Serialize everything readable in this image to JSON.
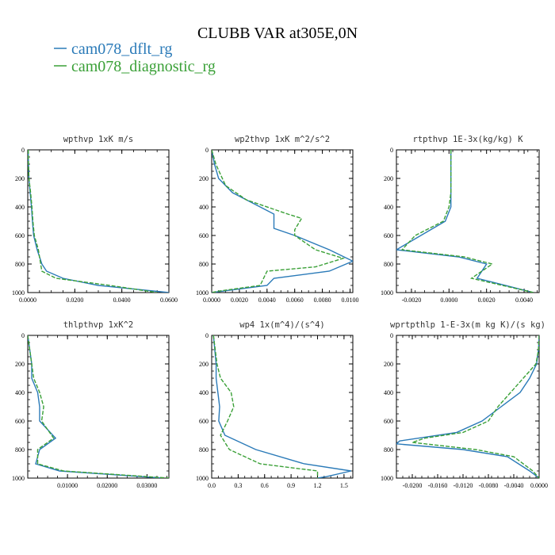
{
  "figure": {
    "title": "CLUBB VAR at305E,0N",
    "legend": [
      {
        "label": "cam078_dflt_rg",
        "color": "#2a7ab8"
      },
      {
        "label": "cam078_diagnostic_rg",
        "color": "#3aa037"
      }
    ]
  },
  "chart_data": [
    {
      "type": "line",
      "title": "wpthvp  1xK m/s",
      "xlim": [
        0,
        0.06
      ],
      "ylim": [
        1000,
        0
      ],
      "xticks": [
        "0.0000",
        "0.0200",
        "0.0400",
        "0.0600"
      ],
      "yticks": [
        "0",
        "200",
        "400",
        "600",
        "800",
        "1000"
      ],
      "series": [
        {
          "name": "cam078_dflt_rg",
          "points": [
            [
              0.0002,
              0
            ],
            [
              0.0003,
              100
            ],
            [
              0.0005,
              200
            ],
            [
              0.001,
              300
            ],
            [
              0.0016,
              400
            ],
            [
              0.002,
              500
            ],
            [
              0.0025,
              600
            ],
            [
              0.004,
              700
            ],
            [
              0.006,
              800
            ],
            [
              0.008,
              850
            ],
            [
              0.015,
              900
            ],
            [
              0.03,
              950
            ],
            [
              0.06,
              1000
            ]
          ]
        },
        {
          "name": "cam078_diagnostic_rg",
          "points": [
            [
              0.0002,
              0
            ],
            [
              0.0003,
              100
            ],
            [
              0.0005,
              200
            ],
            [
              0.0012,
              300
            ],
            [
              0.0018,
              400
            ],
            [
              0.0022,
              500
            ],
            [
              0.0028,
              600
            ],
            [
              0.0045,
              700
            ],
            [
              0.0055,
              800
            ],
            [
              0.006,
              850
            ],
            [
              0.012,
              900
            ],
            [
              0.035,
              950
            ],
            [
              0.055,
              1000
            ]
          ]
        }
      ]
    },
    {
      "type": "line",
      "title": "wp2thvp  1xK m^2/s^2",
      "xlim": [
        0,
        0.0102
      ],
      "ylim": [
        1000,
        0
      ],
      "xticks": [
        "0.0000",
        "0.0020",
        "0.0040",
        "0.0060",
        "0.0080",
        "0.0100"
      ],
      "yticks": [
        "0",
        "200",
        "400",
        "600",
        "800",
        "1000"
      ],
      "series": [
        {
          "name": "cam078_dflt_rg",
          "points": [
            [
              0,
              0
            ],
            [
              0.0002,
              100
            ],
            [
              0.0005,
              200
            ],
            [
              0.0015,
              300
            ],
            [
              0.0035,
              400
            ],
            [
              0.0045,
              450
            ],
            [
              0.0045,
              550
            ],
            [
              0.006,
              600
            ],
            [
              0.0085,
              700
            ],
            [
              0.0102,
              780
            ],
            [
              0.0085,
              850
            ],
            [
              0.0045,
              900
            ],
            [
              0.004,
              950
            ],
            [
              0.0008,
              990
            ],
            [
              0,
              1000
            ]
          ]
        },
        {
          "name": "cam078_diagnostic_rg",
          "points": [
            [
              0,
              0
            ],
            [
              0.0003,
              100
            ],
            [
              0.001,
              250
            ],
            [
              0.0025,
              350
            ],
            [
              0.0055,
              450
            ],
            [
              0.0065,
              480
            ],
            [
              0.006,
              560
            ],
            [
              0.006,
              600
            ],
            [
              0.0075,
              700
            ],
            [
              0.0095,
              760
            ],
            [
              0.0075,
              820
            ],
            [
              0.004,
              850
            ],
            [
              0.0035,
              950
            ],
            [
              0.0005,
              990
            ],
            [
              0,
              1000
            ]
          ]
        }
      ]
    },
    {
      "type": "line",
      "title": "rtpthvp  1E-3x(kg/kg) K",
      "xlim": [
        -0.0028,
        0.0048
      ],
      "ylim": [
        1000,
        0
      ],
      "xticks": [
        "-0.0020",
        "0.0000",
        "0.0020",
        "0.0040"
      ],
      "yticks": [
        "0",
        "200",
        "400",
        "600",
        "800",
        "1000"
      ],
      "series": [
        {
          "name": "cam078_dflt_rg",
          "points": [
            [
              0.0001,
              0
            ],
            [
              0.0001,
              300
            ],
            [
              0.0001,
              400
            ],
            [
              -0.0002,
              500
            ],
            [
              -0.0015,
              600
            ],
            [
              -0.0028,
              700
            ],
            [
              0.0005,
              750
            ],
            [
              0.002,
              800
            ],
            [
              0.0015,
              900
            ],
            [
              0.0045,
              1000
            ]
          ]
        },
        {
          "name": "cam078_diagnostic_rg",
          "points": [
            [
              0.0001,
              0
            ],
            [
              0.0001,
              300
            ],
            [
              0,
              400
            ],
            [
              -0.0003,
              500
            ],
            [
              -0.0018,
              600
            ],
            [
              -0.0025,
              700
            ],
            [
              0.0008,
              750
            ],
            [
              0.0023,
              800
            ],
            [
              0.0012,
              900
            ],
            [
              0.0045,
              1000
            ]
          ]
        }
      ]
    },
    {
      "type": "line",
      "title": "thlpthvp  1xK^2",
      "xlim": [
        0,
        0.0355
      ],
      "ylim": [
        1000,
        0
      ],
      "xticks": [
        "0.01000",
        "0.02000",
        "0.03000"
      ],
      "yticks": [
        "0",
        "200",
        "400",
        "600",
        "800",
        "1000"
      ],
      "series": [
        {
          "name": "cam078_dflt_rg",
          "points": [
            [
              0,
              0
            ],
            [
              0.0005,
              100
            ],
            [
              0.001,
              200
            ],
            [
              0.001,
              300
            ],
            [
              0.0025,
              400
            ],
            [
              0.003,
              500
            ],
            [
              0.003,
              600
            ],
            [
              0.007,
              720
            ],
            [
              0.003,
              800
            ],
            [
              0.002,
              900
            ],
            [
              0.008,
              950
            ],
            [
              0.034,
              1000
            ]
          ]
        },
        {
          "name": "cam078_diagnostic_rg",
          "points": [
            [
              0,
              0
            ],
            [
              0.0005,
              100
            ],
            [
              0.001,
              200
            ],
            [
              0.0015,
              300
            ],
            [
              0.003,
              400
            ],
            [
              0.004,
              500
            ],
            [
              0.0035,
              600
            ],
            [
              0.0065,
              720
            ],
            [
              0.0025,
              800
            ],
            [
              0.0025,
              900
            ],
            [
              0.009,
              950
            ],
            [
              0.0355,
              1000
            ]
          ]
        }
      ]
    },
    {
      "type": "line",
      "title": "wp4  1x(m^4)/(s^4)",
      "xlim": [
        0,
        1.6
      ],
      "ylim": [
        1000,
        0
      ],
      "xticks": [
        "0.0",
        "0.3",
        "0.6",
        "0.9",
        "1.2",
        "1.5"
      ],
      "yticks": [
        "0",
        "200",
        "400",
        "600",
        "800",
        "1000"
      ],
      "series": [
        {
          "name": "cam078_dflt_rg",
          "points": [
            [
              0.02,
              0
            ],
            [
              0.05,
              200
            ],
            [
              0.05,
              300
            ],
            [
              0.07,
              400
            ],
            [
              0.09,
              500
            ],
            [
              0.08,
              600
            ],
            [
              0.15,
              700
            ],
            [
              0.5,
              800
            ],
            [
              1.05,
              900
            ],
            [
              1.58,
              950
            ],
            [
              1.3,
              990
            ],
            [
              1.2,
              1000
            ]
          ]
        },
        {
          "name": "cam078_diagnostic_rg",
          "points": [
            [
              0.02,
              0
            ],
            [
              0.06,
              200
            ],
            [
              0.1,
              300
            ],
            [
              0.22,
              400
            ],
            [
              0.25,
              500
            ],
            [
              0.18,
              600
            ],
            [
              0.1,
              700
            ],
            [
              0.2,
              800
            ],
            [
              0.55,
              900
            ],
            [
              1.2,
              950
            ],
            [
              1.2,
              1000
            ]
          ]
        }
      ]
    },
    {
      "type": "line",
      "title": "wprtpthlp  1-E-3x(m kg K)/(s kg)",
      "xlim": [
        -0.0225,
        0
      ],
      "ylim": [
        1000,
        0
      ],
      "xticks": [
        "-0.0200",
        "-0.0160",
        "-0.0120",
        "-0.0080",
        "-0.0040",
        "0.0000"
      ],
      "yticks": [
        "0",
        "200",
        "400",
        "600",
        "800",
        "1000"
      ],
      "series": [
        {
          "name": "cam078_dflt_rg",
          "points": [
            [
              0,
              0
            ],
            [
              -0.0001,
              100
            ],
            [
              -0.0004,
              200
            ],
            [
              -0.0015,
              300
            ],
            [
              -0.003,
              400
            ],
            [
              -0.006,
              500
            ],
            [
              -0.009,
              600
            ],
            [
              -0.013,
              680
            ],
            [
              -0.022,
              740
            ],
            [
              -0.0225,
              760
            ],
            [
              -0.012,
              800
            ],
            [
              -0.005,
              850
            ],
            [
              -0.0015,
              950
            ],
            [
              0,
              1000
            ]
          ]
        },
        {
          "name": "cam078_diagnostic_rg",
          "points": [
            [
              0,
              0
            ],
            [
              -0.0001,
              100
            ],
            [
              -0.0005,
              200
            ],
            [
              -0.0025,
              300
            ],
            [
              -0.0045,
              400
            ],
            [
              -0.0065,
              500
            ],
            [
              -0.008,
              600
            ],
            [
              -0.012,
              680
            ],
            [
              -0.018,
              720
            ],
            [
              -0.02,
              750
            ],
            [
              -0.01,
              800
            ],
            [
              -0.004,
              850
            ],
            [
              -0.001,
              950
            ],
            [
              0,
              1000
            ]
          ]
        }
      ]
    }
  ]
}
